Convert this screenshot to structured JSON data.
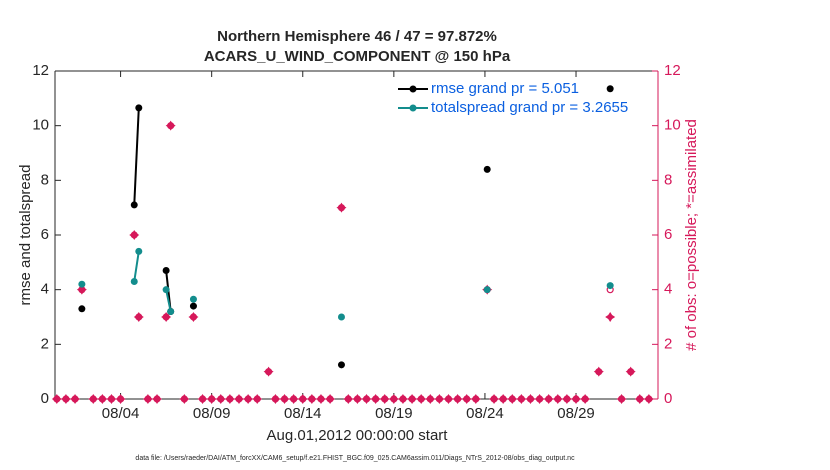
{
  "chart_data": {
    "type": "line",
    "title": "Northern Hemisphere 46 / 47 = 97.872%",
    "subtitle": "ACARS_U_WIND_COMPONENT @ 150 hPa",
    "ylabel": "rmse and totalspread",
    "y2label": "# of obs: o=possible; *=assimilated",
    "xlabel": "Aug.01,2012 00:00:00 start",
    "footnote": "data file: /Users/raeder/DAI/ATM_forcXX/CAM6_setup/f.e21.FHIST_BGC.f09_025.CAM6assim.011/Diags_NTrS_2012-08/obs_diag_output.nc",
    "xlim": [
      -0.6,
      32.5
    ],
    "xticks": [
      {
        "value": 3,
        "label": "08/04"
      },
      {
        "value": 8,
        "label": "08/09"
      },
      {
        "value": 13,
        "label": "08/14"
      },
      {
        "value": 18,
        "label": "08/19"
      },
      {
        "value": 23,
        "label": "08/24"
      },
      {
        "value": 28,
        "label": "08/29"
      }
    ],
    "ylim": [
      0,
      12
    ],
    "yticks": [
      0,
      2,
      4,
      6,
      8,
      10,
      12
    ],
    "y2lim": [
      0,
      12
    ],
    "y2ticks": [
      0,
      2,
      4,
      6,
      8,
      10,
      12
    ],
    "legend": "top-right",
    "x": [
      0.875,
      2,
      3.75,
      4,
      5,
      5.5,
      5.75,
      6.5,
      7,
      11,
      15.125,
      19,
      23.125,
      27,
      29.875
    ],
    "series": [
      {
        "name": "rmse grand pr = 5.051",
        "color": "#000000",
        "values": [
          3.3,
          null,
          7.1,
          10.65,
          null,
          4.7,
          3.2,
          null,
          3.4,
          null,
          1.25,
          null,
          8.4,
          null,
          11.35
        ]
      },
      {
        "name": "totalspread grand pr = 3.2655",
        "color": "#138d8d",
        "values": [
          4.2,
          null,
          4.3,
          5.4,
          null,
          4.0,
          3.2,
          null,
          3.65,
          null,
          3.0,
          null,
          4.0,
          null,
          4.15
        ]
      }
    ],
    "obs": {
      "color": "#d6185a",
      "axis": "y2",
      "x": [
        -0.5,
        0,
        0.5,
        0.875,
        1.5,
        2,
        2.5,
        3,
        3.75,
        4,
        4.5,
        5,
        5.5,
        5.75,
        6.5,
        7,
        7.5,
        8,
        8.5,
        9,
        9.5,
        10,
        10.5,
        11.125,
        11.5,
        12,
        12.5,
        13,
        13.5,
        14,
        14.5,
        15.125,
        15.5,
        16,
        16.5,
        17,
        17.5,
        18,
        18.5,
        19,
        19.5,
        20,
        20.5,
        21,
        21.5,
        22,
        22.5,
        23.125,
        23.5,
        24,
        24.5,
        25,
        25.5,
        26,
        26.5,
        27,
        27.5,
        28,
        28.5,
        29.25,
        29.875,
        30.5,
        31,
        31.5,
        32
      ],
      "possible": [
        0,
        0,
        0,
        4,
        0,
        0,
        0,
        0,
        6,
        3,
        0,
        0,
        3,
        10,
        0,
        3,
        0,
        0,
        0,
        0,
        0,
        0,
        0,
        1,
        0,
        0,
        0,
        0,
        0,
        0,
        0,
        7,
        0,
        0,
        0,
        0,
        0,
        0,
        0,
        0,
        0,
        0,
        0,
        0,
        0,
        0,
        0,
        4,
        0,
        0,
        0,
        0,
        0,
        0,
        0,
        0,
        0,
        0,
        0,
        1,
        4,
        0,
        1,
        0,
        0
      ],
      "assimilated": [
        0,
        0,
        0,
        4,
        0,
        0,
        0,
        0,
        6,
        3,
        0,
        0,
        3,
        10,
        0,
        3,
        0,
        0,
        0,
        0,
        0,
        0,
        0,
        1,
        0,
        0,
        0,
        0,
        0,
        0,
        0,
        7,
        0,
        0,
        0,
        0,
        0,
        0,
        0,
        0,
        0,
        0,
        0,
        0,
        0,
        0,
        0,
        4,
        0,
        0,
        0,
        0,
        0,
        0,
        0,
        0,
        0,
        0,
        0,
        1,
        3,
        0,
        1,
        0,
        0
      ]
    }
  }
}
